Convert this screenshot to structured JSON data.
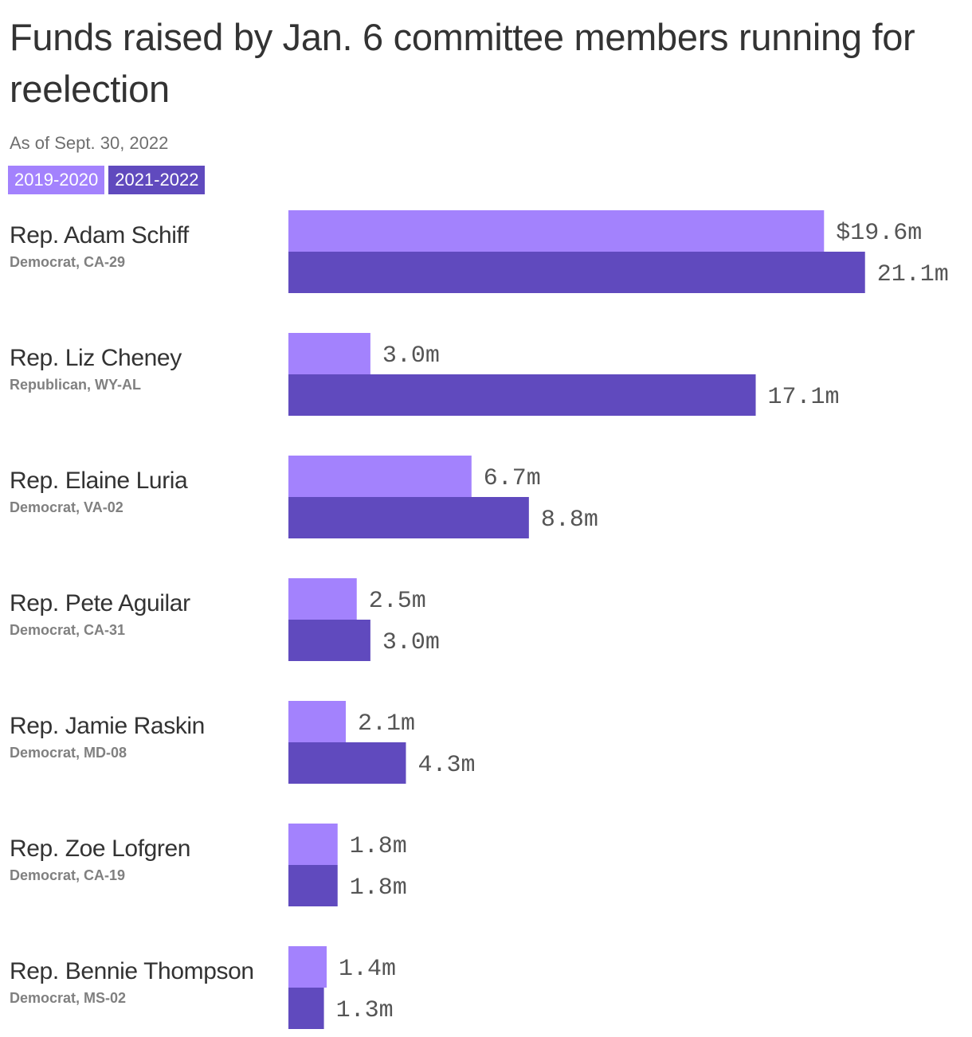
{
  "title": "Funds raised by Jan. 6 committee members running for reelection",
  "subtitle": "As of Sept. 30, 2022",
  "legend": [
    {
      "label": "2019-2020",
      "color": "#a382fd"
    },
    {
      "label": "2021-2022",
      "color": "#604abe"
    }
  ],
  "chart_data": {
    "type": "bar",
    "orientation": "horizontal",
    "title": "Funds raised by Jan. 6 committee members running for reelection",
    "subtitle": "As of Sept. 30, 2022",
    "unit": "$ millions",
    "xlim": [
      0,
      21.1
    ],
    "grid": false,
    "legend_position": "top-left",
    "categories": [
      "Rep. Adam Schiff",
      "Rep. Liz Cheney",
      "Rep. Elaine Luria",
      "Rep. Pete Aguilar",
      "Rep. Jamie Raskin",
      "Rep. Zoe Lofgren",
      "Rep. Bennie Thompson"
    ],
    "category_sublabels": [
      "Democrat, CA-29",
      "Republican, WY-AL",
      "Democrat, VA-02",
      "Democrat, CA-31",
      "Democrat, MD-08",
      "Democrat, CA-19",
      "Democrat, MS-02"
    ],
    "series": [
      {
        "name": "2019-2020",
        "color": "#a382fd",
        "values": [
          19.6,
          3.0,
          6.7,
          2.5,
          2.1,
          1.8,
          1.4
        ],
        "labels": [
          "$19.6m",
          "3.0m",
          "6.7m",
          "2.5m",
          "2.1m",
          "1.8m",
          "1.4m"
        ]
      },
      {
        "name": "2021-2022",
        "color": "#604abe",
        "values": [
          21.1,
          17.1,
          8.8,
          3.0,
          4.3,
          1.8,
          1.3
        ],
        "labels": [
          "21.1m",
          "17.1m",
          "8.8m",
          "3.0m",
          "4.3m",
          "1.8m",
          "1.3m"
        ]
      }
    ]
  }
}
